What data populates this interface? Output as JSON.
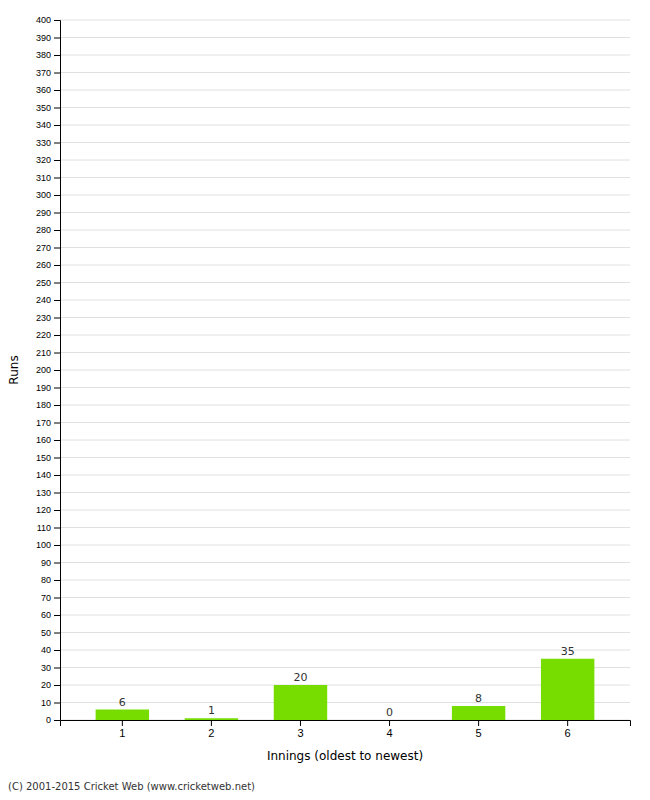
{
  "chart_data": {
    "type": "bar",
    "categories": [
      1,
      2,
      3,
      4,
      5,
      6
    ],
    "values": [
      6,
      1,
      20,
      0,
      8,
      35
    ],
    "color": "#77dd00",
    "xlabel": "Innings (oldest to newest)",
    "ylabel": "Runs",
    "ylim": [
      0,
      400
    ],
    "yticks": [
      0,
      10,
      20,
      30,
      40,
      50,
      60,
      70,
      80,
      90,
      100,
      110,
      120,
      130,
      140,
      150,
      160,
      170,
      180,
      190,
      200,
      210,
      220,
      230,
      240,
      250,
      260,
      270,
      280,
      290,
      300,
      310,
      320,
      330,
      340,
      350,
      360,
      370,
      380,
      390,
      400
    ],
    "grid": true,
    "data_labels": true,
    "annotations": [
      "(C) 2001-2015 Cricket Web (www.cricketweb.net)"
    ]
  }
}
